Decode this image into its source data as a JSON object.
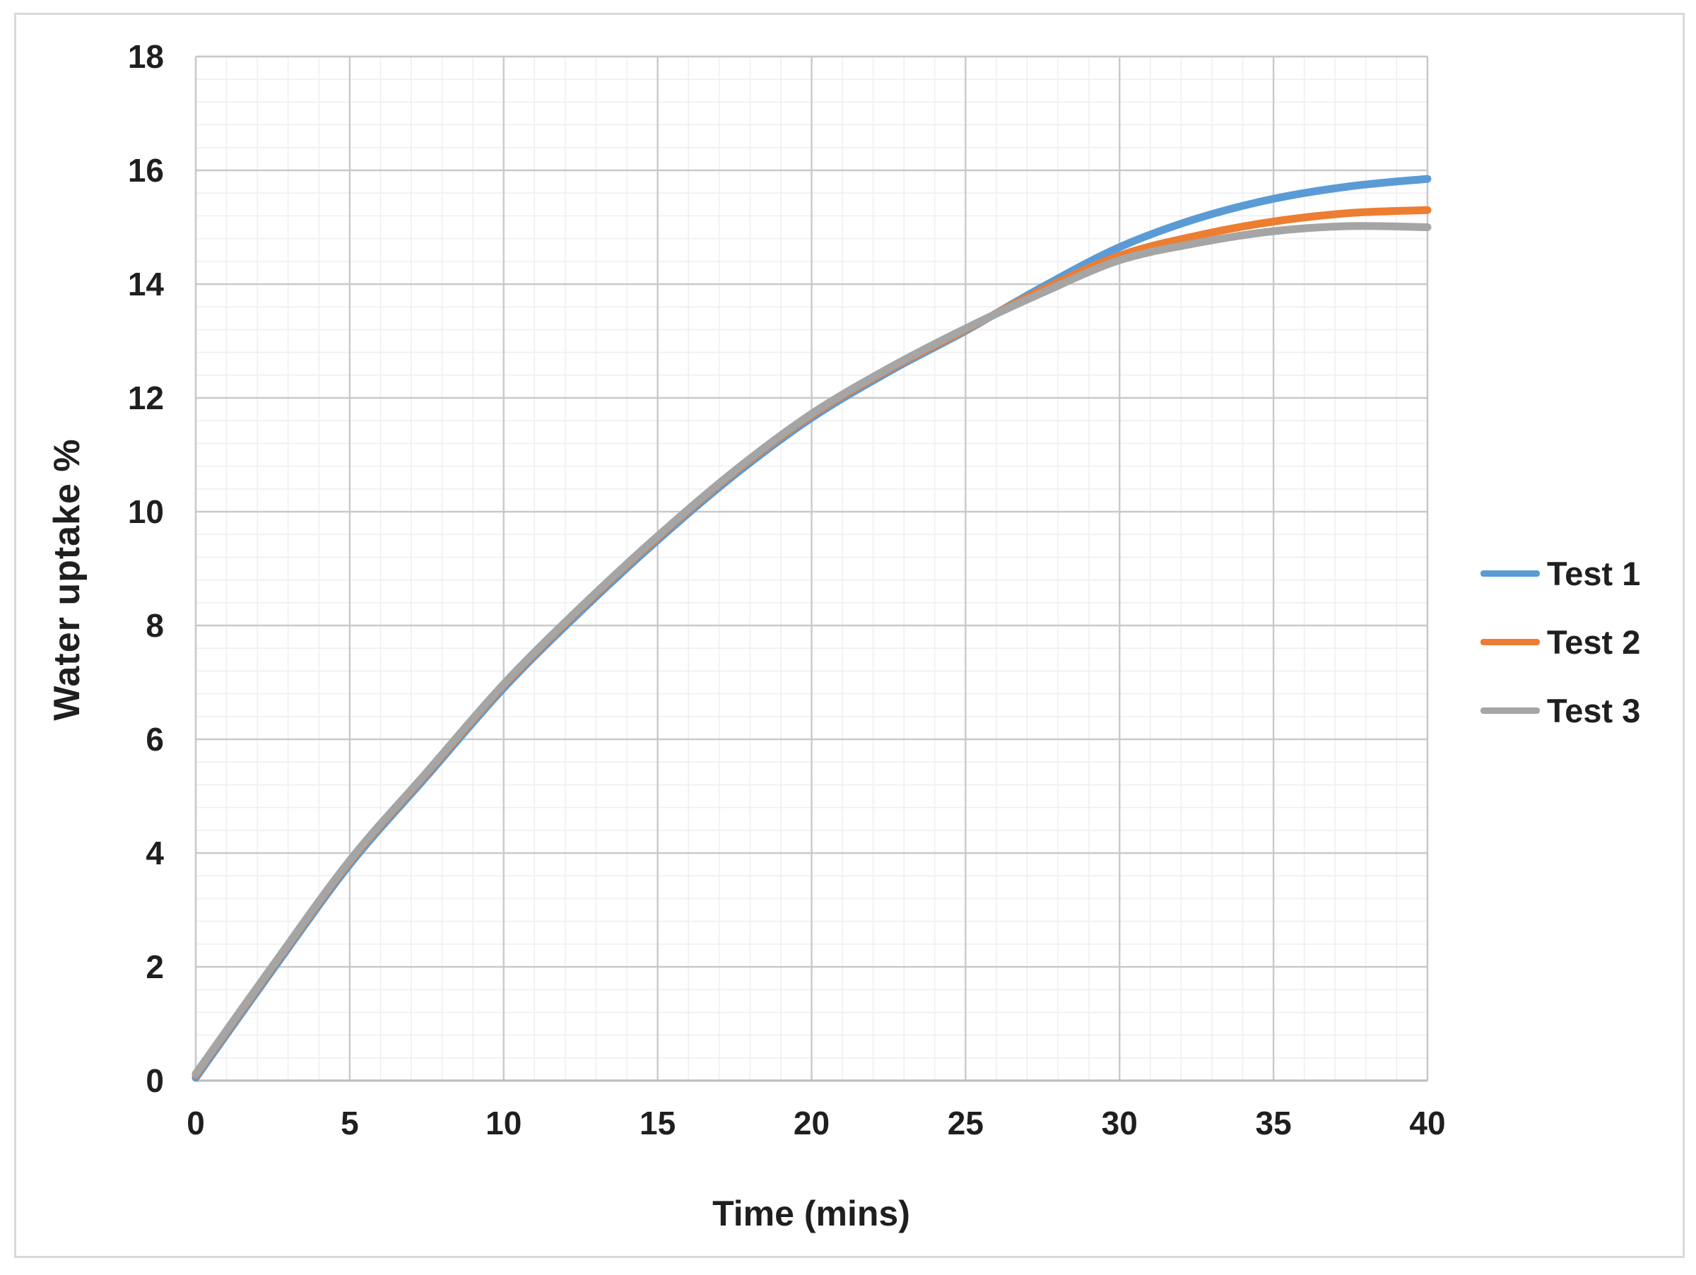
{
  "colors": {
    "test1": "#5B9BD5",
    "test2": "#ED7D31",
    "test3": "#A5A5A5",
    "gridline_minor": "#EFEFEF",
    "gridline_major": "#C9C9C9",
    "axis_line": "#BFBFBF",
    "plot_border": "#C9C9C9",
    "chart_frame": "#D9D9D9",
    "text": "#1F1F1F"
  },
  "chart_data": {
    "type": "line",
    "title": "",
    "xlabel": "Time (mins)",
    "ylabel": "Water uptake %",
    "xlim": [
      0,
      40
    ],
    "ylim": [
      0,
      18
    ],
    "x_ticks": [
      0,
      5,
      10,
      15,
      20,
      25,
      30,
      35,
      40
    ],
    "y_ticks": [
      0,
      2,
      4,
      6,
      8,
      10,
      12,
      14,
      16,
      18
    ],
    "x_minor_unit": 1,
    "y_minor_unit": 0.4,
    "grid": true,
    "legend_position": "right",
    "x": [
      0,
      2.5,
      5,
      7.5,
      10,
      12.5,
      15,
      17.5,
      20,
      22.5,
      25,
      27.5,
      30,
      32.5,
      35,
      37.5,
      40
    ],
    "series": [
      {
        "name": "Test 1",
        "color": "#5B9BD5",
        "values": [
          0.05,
          1.95,
          3.8,
          5.35,
          6.9,
          8.25,
          9.5,
          10.65,
          11.65,
          12.46,
          13.18,
          13.95,
          14.65,
          15.15,
          15.5,
          15.72,
          15.85
        ]
      },
      {
        "name": "Test 2",
        "color": "#ED7D31",
        "values": [
          0.1,
          2.0,
          3.85,
          5.4,
          6.95,
          8.3,
          9.55,
          10.7,
          11.7,
          12.5,
          13.2,
          13.9,
          14.5,
          14.85,
          15.1,
          15.25,
          15.3
        ]
      },
      {
        "name": "Test 3",
        "color": "#A5A5A5",
        "values": [
          0.12,
          2.02,
          3.87,
          5.42,
          6.97,
          8.32,
          9.57,
          10.72,
          11.72,
          12.52,
          13.22,
          13.85,
          14.42,
          14.72,
          14.93,
          15.02,
          15.0
        ]
      }
    ]
  }
}
